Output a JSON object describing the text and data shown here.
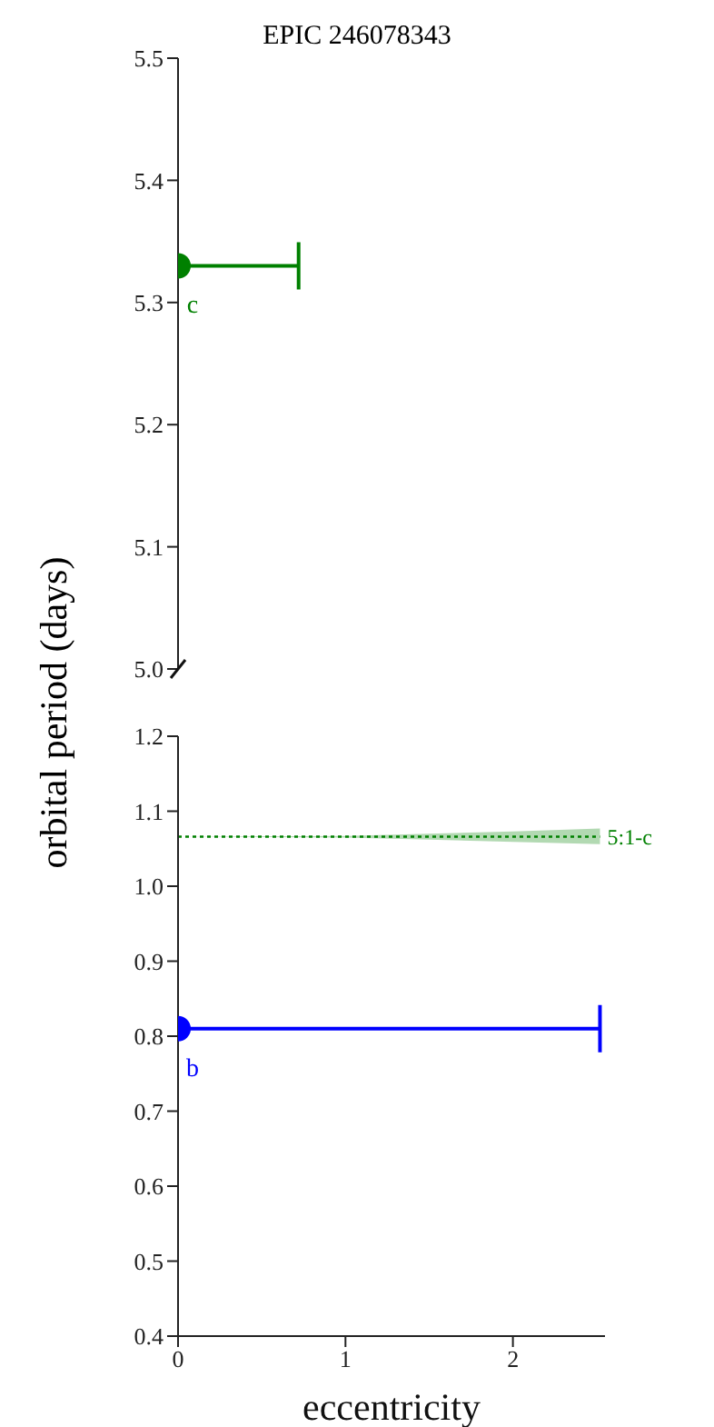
{
  "chart_data": [
    {
      "type": "scatter",
      "title": "EPIC 246078343",
      "ylabel": "orbital period (days)",
      "xticks": [
        0,
        1,
        2
      ],
      "ylim": [
        5.0,
        5.5
      ],
      "yticks": [
        {
          "value": 5,
          "label": "5.0"
        },
        5.1,
        5.2,
        5.3,
        5.4,
        5.5
      ],
      "tick_labels": "y",
      "series": [
        {
          "name": "c",
          "color": "#008000",
          "marker": "circle",
          "x": [
            0
          ],
          "values": [
            5.33
          ],
          "xerrors": [
            [
              0,
              0.72
            ]
          ]
        }
      ]
    },
    {
      "type": "scatter",
      "xlabel": "eccentricity",
      "xlim": [
        0,
        2.55
      ],
      "xticks": [
        0,
        1,
        2
      ],
      "ylim": [
        0.4,
        1.2
      ],
      "yticks": [
        0.4,
        0.5,
        0.6,
        0.7,
        0.8,
        0.9,
        {
          "value": 1,
          "label": "1.0"
        },
        1.1,
        1.2
      ],
      "series": [
        {
          "name": "5:1-c",
          "type": "line",
          "marker": "none",
          "line_style": "dotted",
          "color": "#008000",
          "x": [
            0,
            1,
            1.5,
            2,
            2.52
          ],
          "values": [
            1.066,
            1.066,
            1.066,
            1.066,
            1.066
          ],
          "lower": [
            1.066,
            1.065,
            1.062,
            1.059,
            1.056
          ],
          "upper": [
            1.066,
            1.067,
            1.07,
            1.073,
            1.077
          ]
        },
        {
          "name": "b",
          "color": "#0000ff",
          "marker": "circle",
          "x": [
            0
          ],
          "values": [
            0.81
          ],
          "xerrors": [
            [
              0,
              2.52
            ]
          ]
        }
      ]
    }
  ]
}
